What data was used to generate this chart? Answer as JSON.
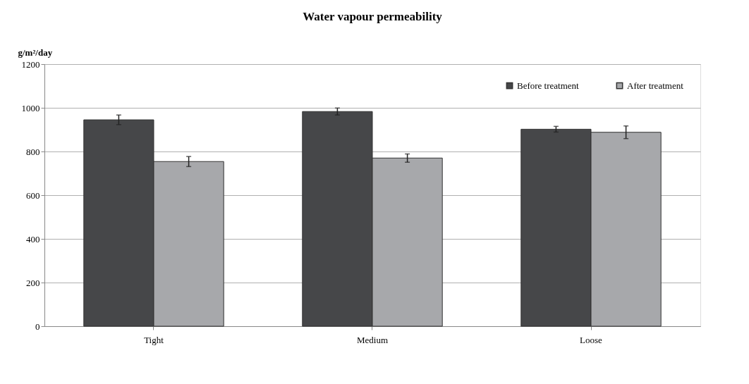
{
  "chart_data": {
    "type": "bar",
    "title": "Water vapour permeability",
    "ylabel": "g/m²/day",
    "categories": [
      "Tight",
      "Medium",
      "Loose"
    ],
    "series": [
      {
        "name": "Before treatment",
        "color": "#464749",
        "values": [
          945,
          983,
          902
        ],
        "errors": [
          22,
          16,
          13
        ]
      },
      {
        "name": "After treatment",
        "color": "#a7a8ab",
        "values": [
          754,
          770,
          888
        ],
        "errors": [
          23,
          19,
          29
        ]
      }
    ],
    "ylim": [
      0,
      1200
    ],
    "yticks": [
      0,
      200,
      400,
      600,
      800,
      1000,
      1200
    ],
    "grid": "y",
    "legend": "top right"
  }
}
